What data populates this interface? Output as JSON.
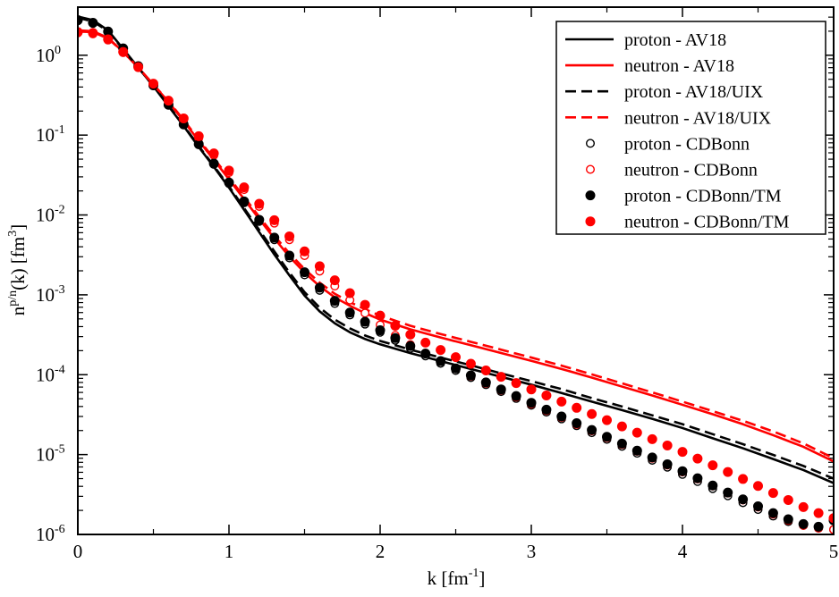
{
  "chart_data": {
    "type": "line",
    "title": "",
    "xlabel": {
      "base": "k [fm",
      "sup": "-1",
      "tail": "]"
    },
    "ylabel": {
      "base": "n",
      "sup1": "p/n",
      "mid": "(k) [fm",
      "sup2": "3",
      "tail": "]"
    },
    "xlim": [
      0,
      5
    ],
    "ylim": [
      1e-06,
      4
    ],
    "yscale": "log",
    "x_ticks": [
      {
        "value": 0,
        "label": "0"
      },
      {
        "value": 1,
        "label": "1"
      },
      {
        "value": 2,
        "label": "2"
      },
      {
        "value": 3,
        "label": "3"
      },
      {
        "value": 4,
        "label": "4"
      },
      {
        "value": 5,
        "label": "5"
      }
    ],
    "y_ticks": [
      {
        "exp": 0,
        "base": "10",
        "sup": "0"
      },
      {
        "exp": -1,
        "base": "10",
        "sup": "-1"
      },
      {
        "exp": -2,
        "base": "10",
        "sup": "-2"
      },
      {
        "exp": -3,
        "base": "10",
        "sup": "-3"
      },
      {
        "exp": -4,
        "base": "10",
        "sup": "-4"
      },
      {
        "exp": -5,
        "base": "10",
        "sup": "-5"
      },
      {
        "exp": -6,
        "base": "10",
        "sup": "-6"
      }
    ],
    "legend_position": "top-right",
    "colors": {
      "proton": "#000000",
      "neutron": "#ff0000"
    },
    "series": [
      {
        "name": "proton - AV18",
        "style": "solid",
        "color": "#000000",
        "x": [
          0,
          0.1,
          0.2,
          0.3,
          0.4,
          0.5,
          0.6,
          0.7,
          0.8,
          0.9,
          1.0,
          1.1,
          1.2,
          1.3,
          1.4,
          1.5,
          1.6,
          1.7,
          1.8,
          1.9,
          2.0,
          2.2,
          2.4,
          2.6,
          2.8,
          3.0,
          3.2,
          3.4,
          3.6,
          3.8,
          4.0,
          4.2,
          4.4,
          4.6,
          4.8,
          5.0
        ],
        "y": [
          3.05,
          2.75,
          2.05,
          1.2,
          0.7,
          0.41,
          0.23,
          0.13,
          0.071,
          0.04,
          0.022,
          0.0116,
          0.0061,
          0.0032,
          0.00175,
          0.00098,
          0.00062,
          0.00044,
          0.00034,
          0.00028,
          0.00024,
          0.000186,
          0.000148,
          0.000118,
          9.4e-05,
          7.5e-05,
          5.9e-05,
          4.6e-05,
          3.6e-05,
          2.8e-05,
          2.15e-05,
          1.6e-05,
          1.2e-05,
          8.8e-06,
          6.4e-06,
          4.4e-06
        ]
      },
      {
        "name": "neutron - AV18",
        "style": "solid",
        "color": "#ff0000",
        "x": [
          0,
          0.1,
          0.2,
          0.3,
          0.4,
          0.5,
          0.6,
          0.7,
          0.8,
          0.9,
          1.0,
          1.1,
          1.2,
          1.3,
          1.4,
          1.5,
          1.6,
          1.7,
          1.8,
          1.9,
          2.0,
          2.2,
          2.4,
          2.6,
          2.8,
          3.0,
          3.2,
          3.4,
          3.6,
          3.8,
          4.0,
          4.2,
          4.4,
          4.6,
          4.8,
          5.0
        ],
        "y": [
          2.05,
          2.0,
          1.65,
          1.1,
          0.7,
          0.43,
          0.26,
          0.15,
          0.085,
          0.049,
          0.028,
          0.0158,
          0.0089,
          0.0051,
          0.003,
          0.0019,
          0.00128,
          0.00093,
          0.00073,
          0.00059,
          0.00049,
          0.00037,
          0.000292,
          0.000234,
          0.000187,
          0.000149,
          0.000118,
          9.2e-05,
          7.1e-05,
          5.5e-05,
          4.2e-05,
          3.2e-05,
          2.4e-05,
          1.75e-05,
          1.25e-05,
          8.2e-06
        ]
      },
      {
        "name": "proton - AV18/UIX",
        "style": "dashed",
        "color": "#000000",
        "x": [
          0,
          0.1,
          0.2,
          0.3,
          0.4,
          0.5,
          0.6,
          0.7,
          0.8,
          0.9,
          1.0,
          1.1,
          1.2,
          1.3,
          1.4,
          1.5,
          1.6,
          1.7,
          1.8,
          1.9,
          2.0,
          2.2,
          2.4,
          2.6,
          2.8,
          3.0,
          3.2,
          3.4,
          3.6,
          3.8,
          4.0,
          4.2,
          4.4,
          4.6,
          4.8,
          5.0
        ],
        "y": [
          2.95,
          2.65,
          2.0,
          1.18,
          0.7,
          0.41,
          0.235,
          0.132,
          0.073,
          0.041,
          0.0228,
          0.0122,
          0.0065,
          0.0035,
          0.0019,
          0.00108,
          0.00069,
          0.00049,
          0.00038,
          0.00031,
          0.000265,
          0.000206,
          0.000164,
          0.000131,
          0.000104,
          8.3e-05,
          6.6e-05,
          5.1e-05,
          4e-05,
          3.1e-05,
          2.4e-05,
          1.8e-05,
          1.35e-05,
          9.9e-06,
          7.2e-06,
          5e-06
        ]
      },
      {
        "name": "neutron - AV18/UIX",
        "style": "dashed",
        "color": "#ff0000",
        "x": [
          0,
          0.1,
          0.2,
          0.3,
          0.4,
          0.5,
          0.6,
          0.7,
          0.8,
          0.9,
          1.0,
          1.1,
          1.2,
          1.3,
          1.4,
          1.5,
          1.6,
          1.7,
          1.8,
          1.9,
          2.0,
          2.2,
          2.4,
          2.6,
          2.8,
          3.0,
          3.2,
          3.4,
          3.6,
          3.8,
          4.0,
          4.2,
          4.4,
          4.6,
          4.8,
          5.0
        ],
        "y": [
          1.98,
          1.95,
          1.62,
          1.1,
          0.7,
          0.43,
          0.265,
          0.155,
          0.088,
          0.051,
          0.0295,
          0.0168,
          0.0095,
          0.0055,
          0.0033,
          0.0021,
          0.00142,
          0.00103,
          0.00081,
          0.00066,
          0.00055,
          0.00041,
          0.000323,
          0.000258,
          0.000206,
          0.000164,
          0.00013,
          0.000101,
          7.8e-05,
          6e-05,
          4.6e-05,
          3.5e-05,
          2.65e-05,
          1.95e-05,
          1.38e-05,
          9e-06
        ]
      },
      {
        "name": "proton - CDBonn",
        "style": "open-circle",
        "color": "#000000",
        "x": [
          0,
          0.1,
          0.2,
          0.3,
          0.4,
          0.5,
          0.6,
          0.7,
          0.8,
          0.9,
          1.0,
          1.1,
          1.2,
          1.3,
          1.4,
          1.5,
          1.6,
          1.7,
          1.8,
          1.9,
          2.0,
          2.1,
          2.2,
          2.3,
          2.4,
          2.5,
          2.6,
          2.7,
          2.8,
          2.9,
          3.0,
          3.1,
          3.2,
          3.3,
          3.4,
          3.5,
          3.6,
          3.7,
          3.8,
          3.9,
          4.0,
          4.1,
          4.2,
          4.3,
          4.4,
          4.5,
          4.6,
          4.7,
          4.8,
          4.9,
          5.0
        ],
        "y": [
          2.7,
          2.5,
          1.95,
          1.2,
          0.72,
          0.42,
          0.24,
          0.135,
          0.076,
          0.043,
          0.0248,
          0.0142,
          0.0083,
          0.0049,
          0.0029,
          0.00178,
          0.00114,
          0.00078,
          0.00056,
          0.00043,
          0.00034,
          0.00027,
          0.000214,
          0.000172,
          0.000139,
          0.000113,
          9.2e-05,
          7.5e-05,
          6.15e-05,
          5.05e-05,
          4.15e-05,
          3.4e-05,
          2.8e-05,
          2.3e-05,
          1.88e-05,
          1.55e-05,
          1.27e-05,
          1.04e-05,
          8.5e-06,
          6.95e-06,
          5.65e-06,
          4.6e-06,
          3.75e-06,
          3.05e-06,
          2.5e-06,
          2.05e-06,
          1.7e-06,
          1.45e-06,
          1.3e-06,
          1.2e-06,
          1.15e-06
        ]
      },
      {
        "name": "neutron - CDBonn",
        "style": "open-circle",
        "color": "#ff0000",
        "x": [
          0,
          0.1,
          0.2,
          0.3,
          0.4,
          0.5,
          0.6,
          0.7,
          0.8,
          0.9,
          1.0,
          1.1,
          1.2,
          1.3,
          1.4,
          1.5,
          1.6,
          1.7,
          1.8,
          1.9,
          2.0,
          2.1,
          2.2,
          2.3,
          2.4,
          2.5,
          2.6,
          2.7,
          2.8,
          2.9,
          3.0,
          3.1,
          3.2,
          3.3,
          3.4,
          3.5,
          3.6,
          3.7,
          3.8,
          3.9,
          4.0,
          4.1,
          4.2,
          4.3,
          4.4,
          4.5,
          4.6,
          4.7,
          4.8,
          4.9,
          5.0
        ],
        "y": [
          1.9,
          1.85,
          1.55,
          1.08,
          0.7,
          0.43,
          0.26,
          0.155,
          0.092,
          0.056,
          0.034,
          0.0208,
          0.0128,
          0.0079,
          0.0049,
          0.0031,
          0.00198,
          0.00129,
          0.00086,
          0.00059,
          0.00042,
          0.00031,
          0.000238,
          0.000186,
          0.000148,
          0.000119,
          9.6e-05,
          7.8e-05,
          6.4e-05,
          5.25e-05,
          4.3e-05,
          3.55e-05,
          2.92e-05,
          2.4e-05,
          1.98e-05,
          1.63e-05,
          1.34e-05,
          1.1e-05,
          9e-06,
          7.4e-06,
          6.05e-06,
          4.95e-06,
          4.05e-06,
          3.3e-06,
          2.7e-06,
          2.2e-06,
          1.8e-06,
          1.5e-06,
          1.3e-06,
          1.2e-06,
          1.15e-06
        ]
      },
      {
        "name": "proton - CDBonn/TM",
        "style": "filled-circle",
        "color": "#000000",
        "x": [
          0,
          0.1,
          0.2,
          0.3,
          0.4,
          0.5,
          0.6,
          0.7,
          0.8,
          0.9,
          1.0,
          1.1,
          1.2,
          1.3,
          1.4,
          1.5,
          1.6,
          1.7,
          1.8,
          1.9,
          2.0,
          2.1,
          2.2,
          2.3,
          2.4,
          2.5,
          2.6,
          2.7,
          2.8,
          2.9,
          3.0,
          3.1,
          3.2,
          3.3,
          3.4,
          3.5,
          3.6,
          3.7,
          3.8,
          3.9,
          4.0,
          4.1,
          4.2,
          4.3,
          4.4,
          4.5,
          4.6,
          4.7,
          4.8,
          4.9,
          5.0
        ],
        "y": [
          2.75,
          2.55,
          1.98,
          1.22,
          0.73,
          0.42,
          0.24,
          0.136,
          0.077,
          0.044,
          0.0255,
          0.0148,
          0.0087,
          0.0052,
          0.0031,
          0.00192,
          0.00123,
          0.00084,
          0.0006,
          0.00046,
          0.00036,
          0.000288,
          0.000229,
          0.000184,
          0.000148,
          0.00012,
          9.8e-05,
          8e-05,
          6.55e-05,
          5.4e-05,
          4.45e-05,
          3.65e-05,
          3e-05,
          2.47e-05,
          2.03e-05,
          1.67e-05,
          1.37e-05,
          1.12e-05,
          9.2e-06,
          7.55e-06,
          6.2e-06,
          5.05e-06,
          4.1e-06,
          3.35e-06,
          2.75e-06,
          2.25e-06,
          1.85e-06,
          1.55e-06,
          1.35e-06,
          1.25e-06,
          1.5e-06
        ]
      },
      {
        "name": "neutron - CDBonn/TM",
        "style": "filled-circle",
        "color": "#ff0000",
        "x": [
          0,
          0.1,
          0.2,
          0.3,
          0.4,
          0.5,
          0.6,
          0.7,
          0.8,
          0.9,
          1.0,
          1.1,
          1.2,
          1.3,
          1.4,
          1.5,
          1.6,
          1.7,
          1.8,
          1.9,
          2.0,
          2.1,
          2.2,
          2.3,
          2.4,
          2.5,
          2.6,
          2.7,
          2.8,
          2.9,
          3.0,
          3.1,
          3.2,
          3.3,
          3.4,
          3.5,
          3.6,
          3.7,
          3.8,
          3.9,
          4.0,
          4.1,
          4.2,
          4.3,
          4.4,
          4.5,
          4.6,
          4.7,
          4.8,
          4.9,
          5.0
        ],
        "y": [
          1.95,
          1.9,
          1.58,
          1.1,
          0.71,
          0.44,
          0.27,
          0.162,
          0.097,
          0.059,
          0.036,
          0.0222,
          0.0138,
          0.0086,
          0.0054,
          0.0035,
          0.00228,
          0.00152,
          0.00105,
          0.00075,
          0.00055,
          0.00041,
          0.000318,
          0.000252,
          0.000204,
          0.000166,
          0.000137,
          0.000113,
          9.4e-05,
          7.85e-05,
          6.55e-05,
          5.5e-05,
          4.6e-05,
          3.85e-05,
          3.22e-05,
          2.7e-05,
          2.25e-05,
          1.88e-05,
          1.56e-05,
          1.3e-05,
          1.08e-05,
          8.9e-06,
          7.35e-06,
          6.05e-06,
          4.95e-06,
          4.05e-06,
          3.3e-06,
          2.7e-06,
          2.2e-06,
          1.85e-06,
          1.6e-06
        ]
      }
    ]
  }
}
